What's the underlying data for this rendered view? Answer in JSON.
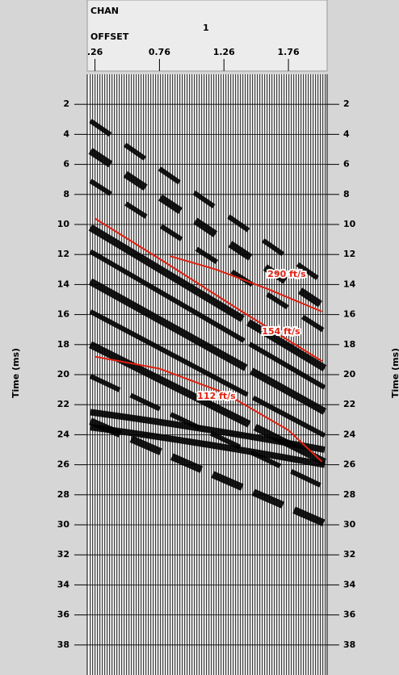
{
  "chart_data": {
    "type": "seismic",
    "channel_label": "CHAN",
    "channel": 1,
    "x_label": "OFFSET",
    "y_label": "Time (ms)",
    "xlim": [
      0.2,
      2.06
    ],
    "xticks": [
      {
        "value": 0.26,
        "label": ".26"
      },
      0.76,
      1.26,
      1.76
    ],
    "ylim": [
      0,
      40
    ],
    "yticks": [
      2,
      4,
      6,
      8,
      10,
      12,
      14,
      16,
      18,
      20,
      22,
      24,
      26,
      28,
      30,
      32,
      34,
      36,
      38
    ],
    "grid": true,
    "series": [
      {
        "name": "290 ft/s",
        "color": "#e02010",
        "x": [
          0.84,
          1.2,
          1.6,
          2.02
        ],
        "values": [
          12.1,
          13.0,
          14.3,
          15.8
        ]
      },
      {
        "name": "154 ft/s",
        "color": "#e02010",
        "x": [
          0.26,
          0.8,
          1.4,
          2.02
        ],
        "values": [
          9.6,
          12.5,
          15.8,
          19.1
        ]
      },
      {
        "name": "112 ft/s",
        "color": "#e02010",
        "x": [
          0.26,
          0.76,
          1.26,
          1.76,
          2.02
        ],
        "values": [
          18.8,
          19.6,
          21.2,
          23.7,
          25.8
        ]
      }
    ]
  }
}
